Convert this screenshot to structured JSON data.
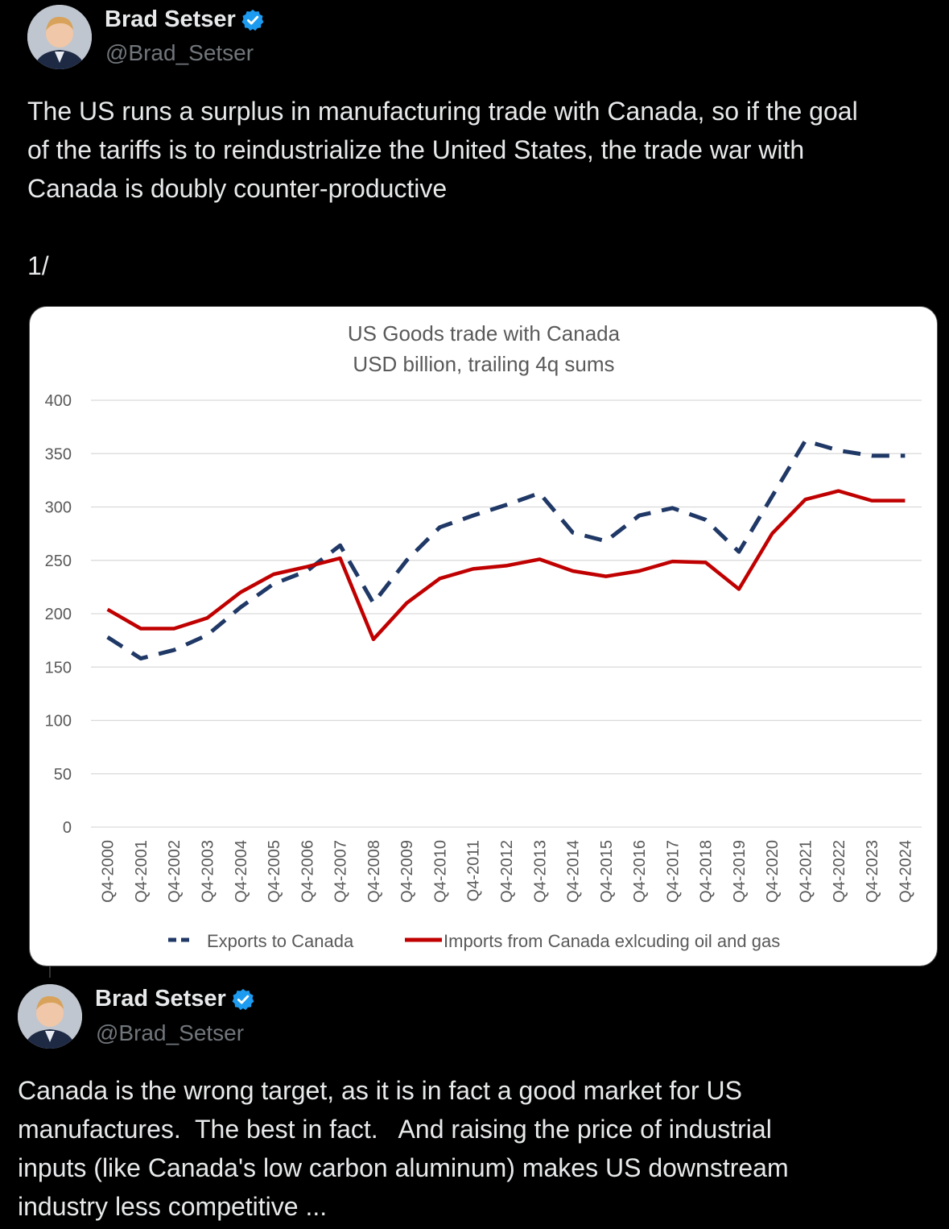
{
  "tweet1": {
    "name": "Brad Setser",
    "handle": "@Brad_Setser",
    "text": "The US runs a surplus in manufacturing trade with Canada, so if the goal\nof the tariffs is to reindustrialize the United States, the trade war with\nCanada is doubly counter-productive\n\n1/"
  },
  "tweet2": {
    "name": "Brad Setser",
    "handle": "@Brad_Setser",
    "text": "Canada is the wrong target, as it is in fact a good market for US\nmanufactures.  The best in fact.   And raising the price of industrial\ninputs (like Canada's low carbon aluminum) makes US downstream\nindustry less competitive ..."
  },
  "icons": {
    "verified": "verified-badge-icon",
    "avatar": "profile-avatar"
  },
  "colors": {
    "verified": "#1d9bf0",
    "exports": "#1f3866",
    "imports": "#c00000"
  },
  "chart_data": {
    "type": "line",
    "title": "US Goods trade with Canada",
    "subtitle": "USD billion, trailing 4q sums",
    "categories": [
      "Q4-2000",
      "Q4-2001",
      "Q4-2002",
      "Q4-2003",
      "Q4-2004",
      "Q4-2005",
      "Q4-2006",
      "Q4-2007",
      "Q4-2008",
      "Q4-2009",
      "Q4-2010",
      "Q4-2011",
      "Q4-2012",
      "Q4-2013",
      "Q4-2014",
      "Q4-2015",
      "Q4-2016",
      "Q4-2017",
      "Q4-2018",
      "Q4-2019",
      "Q4-2020",
      "Q4-2021",
      "Q4-2022",
      "Q4-2023",
      "Q4-2024"
    ],
    "yticks": [
      "0",
      "50",
      "100",
      "150",
      "200",
      "250",
      "300",
      "350",
      "400"
    ],
    "ylim": [
      0,
      400
    ],
    "series": [
      {
        "name": "Exports to Canada",
        "style": "dashed",
        "values": [
          178,
          158,
          166,
          180,
          206,
          228,
          240,
          264,
          210,
          250,
          281,
          292,
          302,
          313,
          276,
          268,
          292,
          299,
          288,
          258,
          310,
          362,
          353,
          348,
          348
        ]
      },
      {
        "name": "Imports from Canada exlcuding oil and gas",
        "style": "solid",
        "values": [
          204,
          186,
          186,
          196,
          220,
          237,
          244,
          252,
          176,
          210,
          233,
          242,
          245,
          251,
          240,
          235,
          240,
          249,
          248,
          223,
          275,
          307,
          315,
          306,
          306
        ]
      }
    ],
    "legend": "bottom"
  }
}
